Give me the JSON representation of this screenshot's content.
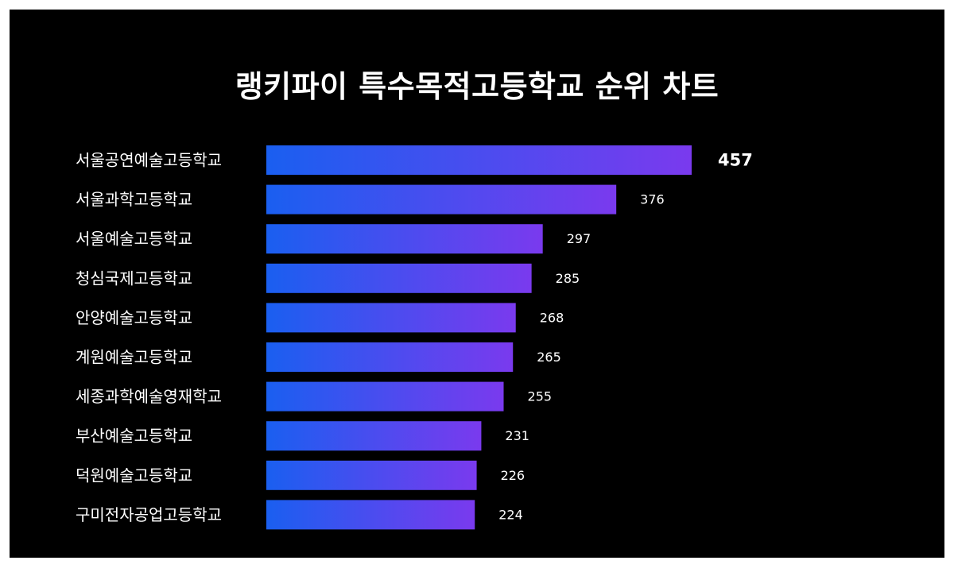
{
  "title": "랭키파이 특수목적고등학교 순위 차트",
  "colors": {
    "background": "#000000",
    "bar_start": "#1a5ff0",
    "bar_end": "#7a3aee",
    "text": "#ffffff"
  },
  "chart_data": {
    "type": "bar",
    "orientation": "horizontal",
    "title": "랭키파이 특수목적고등학교 순위 차트",
    "xlabel": "",
    "ylabel": "",
    "grid": false,
    "categories": [
      "서울공연예술고등학교",
      "서울과학고등학교",
      "서울예술고등학교",
      "청심국제고등학교",
      "안양예술고등학교",
      "계원예술고등학교",
      "세종과학예술영재학교",
      "부산예술고등학교",
      "덕원예술고등학교",
      "구미전자공업고등학교"
    ],
    "values": [
      457,
      376,
      297,
      285,
      268,
      265,
      255,
      231,
      226,
      224
    ],
    "xlim": [
      0,
      457
    ]
  }
}
